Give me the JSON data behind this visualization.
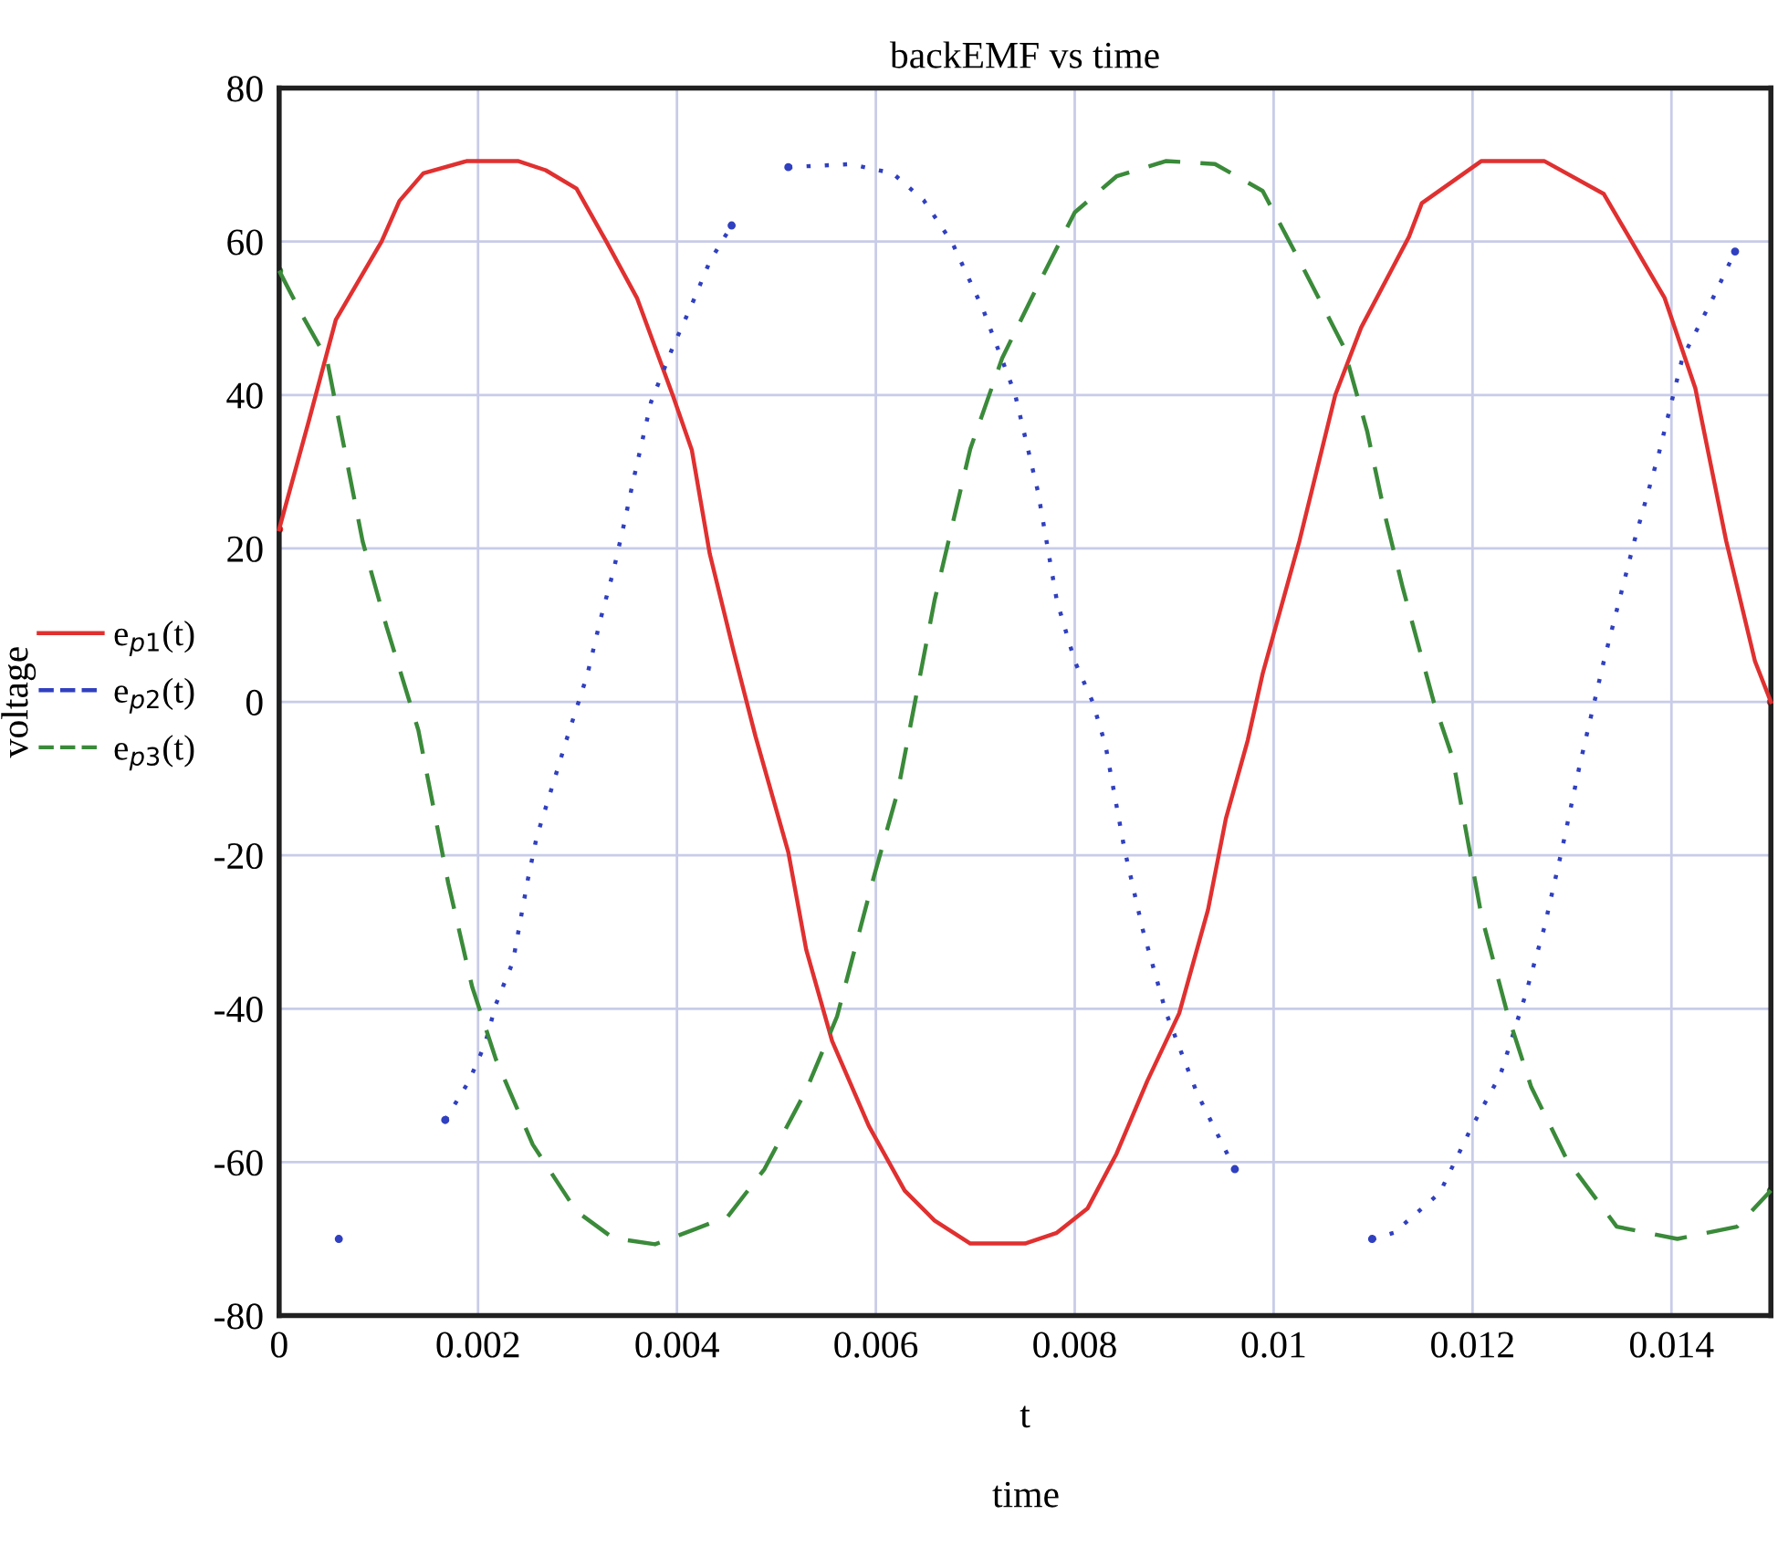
{
  "chart_data": {
    "type": "line",
    "title": "backEMF vs time",
    "xlabel": "t",
    "ylabel": "voltage",
    "annotations": [
      "time"
    ],
    "xlim": [
      0,
      0.015
    ],
    "ylim": [
      -80,
      80
    ],
    "xticks": [
      0,
      0.002,
      0.004,
      0.006,
      0.008,
      0.01,
      0.012,
      0.014
    ],
    "yticks": [
      -80,
      -60,
      -40,
      -20,
      0,
      20,
      40,
      60,
      80
    ],
    "grid": true,
    "legend": "left",
    "marker": "none",
    "series": [
      {
        "name": "e$_{p1}$(t)",
        "color": "#e03030",
        "line_style": "solid",
        "x": [
          0,
          0.0003,
          0.00057,
          0.00103,
          0.00121,
          0.00145,
          0.00189,
          0.0024,
          0.00268,
          0.00299,
          0.00329,
          0.0036,
          0.00396,
          0.00415,
          0.00433,
          0.00457,
          0.00479,
          0.00512,
          0.0053,
          0.00556,
          0.00593,
          0.00629,
          0.00659,
          0.00695,
          0.0075,
          0.00782,
          0.00813,
          0.00842,
          0.00873,
          0.00905,
          0.00934,
          0.00952,
          0.00974,
          0.00989,
          0.01026,
          0.01062,
          0.01088,
          0.01136,
          0.01149,
          0.01209,
          0.01272,
          0.01332,
          0.01393,
          0.01424,
          0.01455,
          0.01484,
          0.015
        ],
        "values": [
          22.5,
          36.7,
          49.8,
          60,
          65.3,
          68.9,
          70.5,
          70.5,
          69.3,
          66.9,
          60,
          52.6,
          39.9,
          32.8,
          19.3,
          6.6,
          -4.5,
          -19.6,
          -32.3,
          -44.2,
          -55.3,
          -63.7,
          -67.6,
          -70.6,
          -70.6,
          -69.2,
          -66,
          -58.9,
          -49.4,
          -40.6,
          -27.1,
          -15.2,
          -5,
          3.7,
          21,
          40,
          48.8,
          60.6,
          65,
          70.5,
          70.5,
          66.2,
          52.7,
          40.9,
          21,
          5.3,
          0
        ]
      },
      {
        "name": "e$_{p2}$(t)",
        "color": "#3040c0",
        "line_style": "dotted",
        "x": [
          0.0006,
          0.0011,
          0.00167,
          0.00191,
          0.00207,
          0.00218,
          0.00235,
          0.0025,
          0.00259,
          0.00273,
          0.0029,
          0.0031,
          0.00323,
          0.00336,
          0.00347,
          0.00356,
          0.00374,
          0.00396,
          0.00415,
          0.00433,
          0.00455,
          0.0048,
          0.00512,
          0.00574,
          0.00617,
          0.00648,
          0.00677,
          0.00708,
          0.0074,
          0.00763,
          0.00782,
          0.008,
          0.00818,
          0.00831,
          0.0085,
          0.00868,
          0.00892,
          0.00923,
          0.00961,
          0.0103,
          0.01099,
          0.01121,
          0.01167,
          0.01198,
          0.01228,
          0.01253,
          0.01272,
          0.0129,
          0.01308,
          0.01332,
          0.01363,
          0.01387,
          0.01411,
          0.01442,
          0.01464
        ],
        "values": [
          -70,
          null,
          -54.5,
          -49.4,
          -44.6,
          -39.4,
          -33.9,
          -23.2,
          -17.6,
          -11.7,
          -4.5,
          3.6,
          10.7,
          17,
          23.3,
          28.8,
          39.1,
          46.3,
          51.8,
          57.4,
          62.1,
          null,
          69.7,
          70.1,
          68.9,
          65.4,
          59.8,
          51.1,
          40.1,
          27.4,
          13.2,
          5.3,
          0,
          -5.7,
          -19.2,
          -29.5,
          -40.6,
          -51,
          -60.9,
          null,
          -70,
          -69.2,
          -64,
          -55.7,
          -48.6,
          -38.3,
          -29.5,
          -19.2,
          -8.1,
          5.3,
          21.1,
          32.2,
          44.8,
          52.7,
          58.7
        ]
      },
      {
        "name": "e$_{p3}$(t)",
        "color": "#3a8a3a",
        "line_style": "dashed",
        "x": [
          0,
          0.00024,
          0.00048,
          0.0006,
          0.00084,
          0.00108,
          0.0014,
          0.0017,
          0.00194,
          0.00218,
          0.00255,
          0.00299,
          0.00336,
          0.00378,
          0.00451,
          0.00488,
          0.0053,
          0.00561,
          0.00598,
          0.00622,
          0.00659,
          0.00695,
          0.00727,
          0.00763,
          0.008,
          0.00842,
          0.00892,
          0.00941,
          0.00989,
          0.01026,
          0.0107,
          0.01094,
          0.01112,
          0.0113,
          0.01161,
          0.0118,
          0.01209,
          0.01235,
          0.01259,
          0.01295,
          0.01345,
          0.01406,
          0.01466,
          0.015
        ],
        "values": [
          56.2,
          50.2,
          44.7,
          36.7,
          20.9,
          9.8,
          -3.7,
          -23.6,
          -37.1,
          -46.6,
          -57.7,
          -66.4,
          -69.9,
          -70.7,
          -67.1,
          -60.9,
          -50.6,
          -41,
          -22.8,
          -11.7,
          13.2,
          33,
          44.8,
          54.3,
          63.8,
          68.5,
          70.5,
          70.1,
          66.6,
          57.5,
          46.4,
          35.3,
          24.3,
          14.8,
          0,
          -7.3,
          -27.9,
          -40.6,
          -50.2,
          -59.7,
          -68.4,
          -70,
          -68.4,
          -63.7
        ]
      }
    ]
  }
}
